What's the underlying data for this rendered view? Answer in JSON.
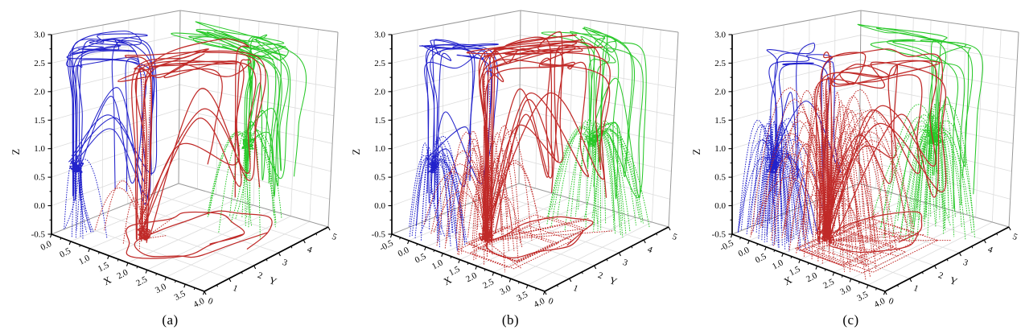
{
  "colors": {
    "background": "#ffffff",
    "grid": "#dcdcdc",
    "frame": "#999999",
    "axis": "#000000",
    "blue": "#2222cb",
    "red": "#c02a28",
    "green": "#28c828"
  },
  "chart_data": [
    {
      "type": "line",
      "plot_kind": "3d-trajectories",
      "panel_label": "(a)",
      "seed": 3,
      "axes": {
        "x": {
          "label": "X",
          "min": 0,
          "max": 4,
          "major_ticks": [
            "0.0",
            "0.5",
            "1.0",
            "1.5",
            "2.0",
            "2.5",
            "3.0",
            "3.5",
            "4.0"
          ]
        },
        "y": {
          "label": "Y",
          "min": 0,
          "max": 5,
          "major_ticks": [
            "0",
            "1",
            "2",
            "3",
            "4",
            "5"
          ]
        },
        "z": {
          "label": "Z",
          "min": -0.5,
          "max": 3,
          "major_ticks": [
            "-0.5",
            "0.0",
            "0.5",
            "1.0",
            "1.5",
            "2.0",
            "2.5",
            "3.0"
          ]
        }
      },
      "series": [
        {
          "name": "blue-group",
          "color": "#2222cb",
          "line_width": 1.05,
          "travel": "y",
          "source": [
            0.35,
            0.5,
            0.7
          ],
          "region": [
            0.15,
            1.3,
            0.2,
            2.4
          ],
          "loops": 8,
          "loop_top": [
            2.5,
            2.95
          ],
          "arcs": 6,
          "arc_height": [
            0.2,
            0.6
          ],
          "arc_reach": [
            0.2,
            0.8
          ],
          "descenders": 7,
          "risers": 0,
          "knot": 1,
          "floor_rects": 0,
          "floor_spokes": 0,
          "floor_wander": 0
        },
        {
          "name": "green-group",
          "color": "#28c828",
          "line_width": 1.05,
          "travel": "x",
          "source": [
            2.6,
            3.85,
            1.0
          ],
          "region": [
            0.4,
            3.4,
            3.4,
            4.9
          ],
          "loops": 8,
          "loop_top": [
            2.55,
            2.95
          ],
          "arcs": 13,
          "arc_height": [
            0.2,
            0.8
          ],
          "arc_reach": [
            0.2,
            1.0
          ],
          "descenders": 5,
          "risers": 0,
          "knot": 1,
          "floor_rects": 0,
          "floor_spokes": 0,
          "floor_wander": 0
        },
        {
          "name": "red-group",
          "color": "#c02a28",
          "line_width": 1.25,
          "travel": "y",
          "source": [
            1.55,
            1.3,
            -0.35
          ],
          "region": [
            1.2,
            2.9,
            0.4,
            4.5
          ],
          "loops": 7,
          "loop_top": [
            2.35,
            2.75
          ],
          "arcs": 5,
          "arc_height": [
            0.1,
            0.5
          ],
          "arc_reach": [
            0.3,
            1.2
          ],
          "descenders": 0,
          "risers": 3,
          "knot": 1,
          "floor_rects": 0,
          "floor_spokes": 3,
          "floor_wander": {
            "count": 2,
            "cx": 2.1,
            "cy": 2.4,
            "rx": 0.95,
            "ry": 1.85
          }
        }
      ]
    },
    {
      "type": "line",
      "plot_kind": "3d-trajectories",
      "panel_label": "(b)",
      "seed": 8,
      "axes": {
        "x": {
          "label": "X",
          "min": -0.5,
          "max": 4,
          "major_ticks": [
            "-0.5",
            "0.0",
            "0.5",
            "1.0",
            "1.5",
            "2.0",
            "2.5",
            "3.0",
            "3.5",
            "4.0"
          ]
        },
        "y": {
          "label": "Y",
          "min": 0,
          "max": 5,
          "major_ticks": [
            "0",
            "1",
            "2",
            "3",
            "4",
            "5"
          ]
        },
        "z": {
          "label": "Z",
          "min": -0.5,
          "max": 3,
          "major_ticks": [
            "-0.5",
            "0.0",
            "0.5",
            "1.0",
            "1.5",
            "2.0",
            "2.5",
            "3.0"
          ]
        }
      },
      "series": [
        {
          "name": "blue-group",
          "color": "#2222cb",
          "line_width": 1.05,
          "travel": "y",
          "source": [
            0.3,
            0.55,
            0.75
          ],
          "region": [
            -0.25,
            1.1,
            0.2,
            2.3
          ],
          "loops": 6,
          "loop_top": [
            2.5,
            2.95
          ],
          "arcs": 28,
          "arc_height": [
            0.4,
            1.3
          ],
          "arc_reach": [
            0.3,
            1.3
          ],
          "descenders": 3,
          "risers": 0,
          "knot": 1,
          "floor_rects": 0,
          "floor_spokes": 0,
          "floor_wander": 0
        },
        {
          "name": "green-group",
          "color": "#28c828",
          "line_width": 1.05,
          "travel": "x",
          "source": [
            2.5,
            3.9,
            1.05
          ],
          "region": [
            0.3,
            3.3,
            3.4,
            4.9
          ],
          "loops": 6,
          "loop_top": [
            2.55,
            2.95
          ],
          "arcs": 28,
          "arc_height": [
            0.4,
            1.4
          ],
          "arc_reach": [
            0.3,
            1.4
          ],
          "descenders": 4,
          "risers": 0,
          "knot": 1,
          "floor_rects": 0,
          "floor_spokes": 0,
          "floor_wander": 0
        },
        {
          "name": "red-group",
          "color": "#c02a28",
          "line_width": 1.25,
          "travel": "y",
          "source": [
            1.35,
            1.25,
            -0.35
          ],
          "region": [
            1.0,
            2.8,
            0.4,
            4.2
          ],
          "loops": 9,
          "loop_top": [
            2.4,
            2.9
          ],
          "arcs": 40,
          "arc_height": [
            0.3,
            1.6
          ],
          "arc_reach": [
            0.4,
            1.9
          ],
          "descenders": 0,
          "risers": 3,
          "knot": 1,
          "floor_rects": 5,
          "floor_spokes": 8,
          "floor_wander": {
            "count": 1,
            "cx": 2.0,
            "cy": 2.2,
            "rx": 0.8,
            "ry": 1.5
          }
        }
      ]
    },
    {
      "type": "line",
      "plot_kind": "3d-trajectories",
      "panel_label": "(c)",
      "seed": 21,
      "axes": {
        "x": {
          "label": "X",
          "min": -0.5,
          "max": 4,
          "major_ticks": [
            "-0.5",
            "0.0",
            "0.5",
            "1.0",
            "1.5",
            "2.0",
            "2.5",
            "3.0",
            "3.5",
            "4.0"
          ]
        },
        "y": {
          "label": "Y",
          "min": 0,
          "max": 5,
          "major_ticks": [
            "0",
            "1",
            "2",
            "3",
            "4",
            "5"
          ]
        },
        "z": {
          "label": "Z",
          "min": -0.5,
          "max": 3,
          "major_ticks": [
            "-0.5",
            "0.0",
            "0.5",
            "1.0",
            "1.5",
            "2.0",
            "2.5",
            "3.0"
          ]
        }
      },
      "series": [
        {
          "name": "blue-group",
          "color": "#2222cb",
          "line_width": 1.05,
          "travel": "y",
          "source": [
            0.3,
            0.55,
            0.75
          ],
          "region": [
            -0.25,
            1.1,
            0.2,
            2.3
          ],
          "loops": 4,
          "loop_top": [
            2.5,
            2.95
          ],
          "arcs": 56,
          "arc_height": [
            0.5,
            1.7
          ],
          "arc_reach": [
            0.3,
            1.5
          ],
          "descenders": 3,
          "risers": 0,
          "knot": 1,
          "floor_rects": 0,
          "floor_spokes": 0,
          "floor_wander": 0
        },
        {
          "name": "green-group",
          "color": "#28c828",
          "line_width": 1.05,
          "travel": "x",
          "source": [
            2.5,
            3.9,
            1.05
          ],
          "region": [
            0.3,
            3.3,
            3.4,
            4.9
          ],
          "loops": 5,
          "loop_top": [
            2.55,
            2.95
          ],
          "arcs": 46,
          "arc_height": [
            0.5,
            1.8
          ],
          "arc_reach": [
            0.3,
            1.6
          ],
          "descenders": 4,
          "risers": 0,
          "knot": 1,
          "floor_rects": 0,
          "floor_spokes": 0,
          "floor_wander": 0
        },
        {
          "name": "red-group",
          "color": "#c02a28",
          "line_width": 1.25,
          "travel": "y",
          "source": [
            1.35,
            1.25,
            -0.35
          ],
          "region": [
            1.0,
            2.8,
            0.4,
            4.2
          ],
          "loops": 6,
          "loop_top": [
            2.35,
            2.85
          ],
          "arcs": 72,
          "arc_height": [
            0.4,
            2.2
          ],
          "arc_reach": [
            0.4,
            2.4
          ],
          "descenders": 0,
          "risers": 2,
          "knot": 1,
          "floor_rects": 6,
          "floor_spokes": 12,
          "floor_wander": {
            "count": 1,
            "cx": 2.0,
            "cy": 2.3,
            "rx": 0.85,
            "ry": 1.6
          }
        }
      ]
    }
  ]
}
